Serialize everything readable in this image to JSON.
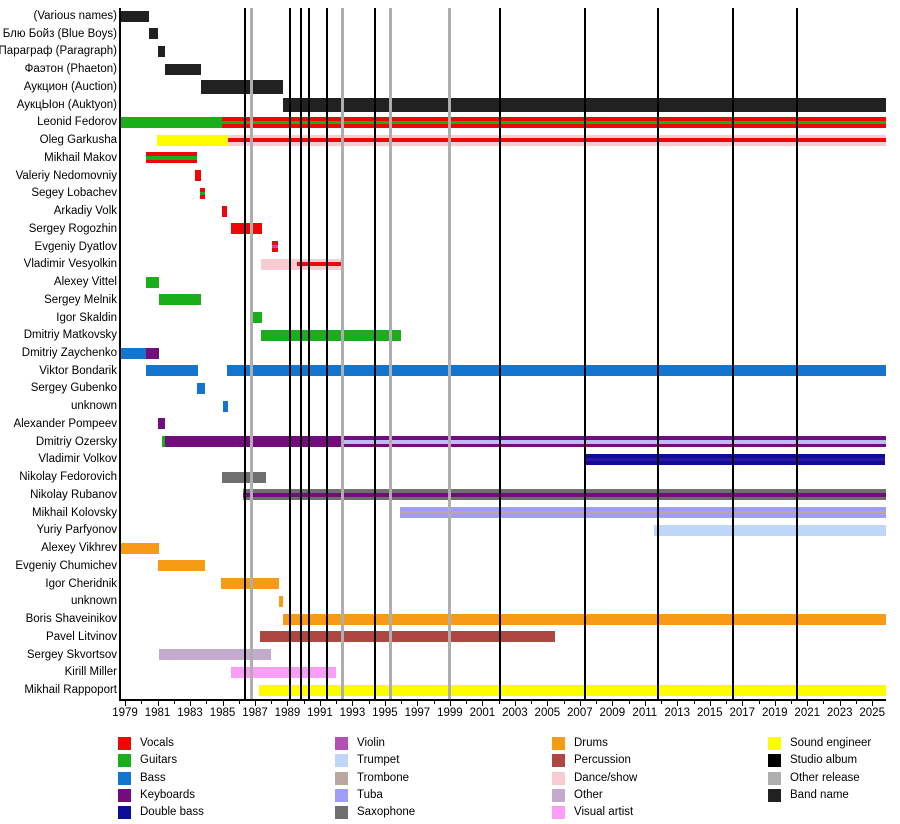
{
  "chart_data": {
    "type": "timeline",
    "title": "",
    "x_axis": {
      "min": 1978.75,
      "max": 2025.85,
      "minor_step": 1,
      "tick_labels": [
        1979,
        1981,
        1983,
        1985,
        1987,
        1989,
        1991,
        1993,
        1995,
        1997,
        1999,
        2001,
        2003,
        2005,
        2007,
        2009,
        2011,
        2013,
        2015,
        2017,
        2019,
        2021,
        2023,
        2025
      ]
    },
    "palette": {
      "vocals": "#ee0707",
      "guitars": "#1bad1b",
      "bass": "#1475cf",
      "keyboards": "#730d7d",
      "double_bass": "#0d0d99",
      "violin": "#b351b3",
      "trumpet": "#bed7f9",
      "trombone": "#b9a7a0",
      "tuba": "#9e9ef6",
      "saxophone": "#6f6f6f",
      "drums": "#f79a18",
      "percussion": "#ae4742",
      "dance_show": "#f9ccd3",
      "other": "#c2abcc",
      "visual_artist": "#fb9df6",
      "sound_engineer": "#fdfd00",
      "studio_album": "#000000",
      "other_release": "#aeaeae",
      "band_name": "#212121"
    },
    "release_lines": {
      "studio_albums": [
        1986.4,
        1989.15,
        1989.85,
        1990.35,
        1991.45,
        1994.4,
        2002.1,
        2007.3,
        2011.8,
        2016.4,
        2020.4
      ],
      "other_releases": [
        1986.8,
        1992.4,
        1995.35,
        1999.0
      ]
    },
    "rows": [
      {
        "label": "(Various names)",
        "band": true,
        "bars": [
          {
            "start": 1978.75,
            "end": 1980.5,
            "stripes": [
              "band_name"
            ]
          }
        ]
      },
      {
        "label": "Блю Бойз (Blue Boys)",
        "band": true,
        "bars": [
          {
            "start": 1980.45,
            "end": 1981.05,
            "stripes": [
              "band_name"
            ]
          }
        ]
      },
      {
        "label": "Параграф (Paragraph)",
        "band": true,
        "bars": [
          {
            "start": 1981.05,
            "end": 1981.45,
            "stripes": [
              "band_name"
            ]
          }
        ]
      },
      {
        "label": "Фаэтон (Phaeton)",
        "band": true,
        "bars": [
          {
            "start": 1981.45,
            "end": 1983.7,
            "stripes": [
              "band_name"
            ]
          }
        ]
      },
      {
        "label": "Аукцион (Auction)",
        "band": true,
        "tall": true,
        "bars": [
          {
            "start": 1983.7,
            "end": 1988.7,
            "stripes": [
              "band_name"
            ]
          }
        ]
      },
      {
        "label": "АукцЫон (Auktyon)",
        "band": true,
        "tall": true,
        "bars": [
          {
            "start": 1988.7,
            "end": 2025.85,
            "stripes": [
              "band_name"
            ]
          }
        ]
      },
      {
        "label": "Leonid Fedorov",
        "bars": [
          {
            "start": 1978.75,
            "end": 1984.95,
            "stripes": [
              "guitars"
            ]
          },
          {
            "start": 1984.95,
            "end": 2025.85,
            "stripes": [
              "vocals",
              "guitars",
              "vocals"
            ]
          }
        ]
      },
      {
        "label": "Oleg Garkusha",
        "bars": [
          {
            "start": 1980.95,
            "end": 1985.35,
            "stripes": [
              "sound_engineer"
            ]
          },
          {
            "start": 1985.35,
            "end": 2025.85,
            "stripes": [
              "dance_show",
              "vocals",
              "dance_show"
            ]
          }
        ]
      },
      {
        "label": "Mikhail Makov",
        "bars": [
          {
            "start": 1980.3,
            "end": 1983.4,
            "stripes": [
              "vocals",
              "guitars",
              "vocals"
            ]
          }
        ]
      },
      {
        "label": "Valeriy Nedomovniy",
        "bars": [
          {
            "start": 1983.3,
            "end": 1983.65,
            "stripes": [
              "vocals"
            ]
          }
        ]
      },
      {
        "label": "Segey Lobachev",
        "bars": [
          {
            "start": 1983.6,
            "end": 1983.95,
            "stripes": [
              "vocals",
              "guitars",
              "vocals"
            ]
          }
        ]
      },
      {
        "label": "Arkadiy Volk",
        "bars": [
          {
            "start": 1984.95,
            "end": 1985.3,
            "stripes": [
              "vocals"
            ]
          }
        ]
      },
      {
        "label": "Sergey Rogozhin",
        "bars": [
          {
            "start": 1985.5,
            "end": 1987.45,
            "stripes": [
              "vocals"
            ]
          }
        ]
      },
      {
        "label": "Evgeniy Dyatlov",
        "bars": [
          {
            "start": 1988.05,
            "end": 1988.4,
            "stripes": [
              "vocals",
              "violin",
              "vocals"
            ]
          }
        ]
      },
      {
        "label": "Vladimir Vesyolkin",
        "bars": [
          {
            "start": 1987.4,
            "end": 1989.6,
            "stripes": [
              "dance_show"
            ]
          },
          {
            "start": 1989.6,
            "end": 1992.4,
            "stripes": [
              "dance_show",
              "vocals",
              "dance_show"
            ]
          }
        ]
      },
      {
        "label": "Alexey Vittel",
        "bars": [
          {
            "start": 1980.3,
            "end": 1981.1,
            "stripes": [
              "guitars"
            ]
          }
        ]
      },
      {
        "label": "Sergey Melnik",
        "bars": [
          {
            "start": 1981.1,
            "end": 1983.7,
            "stripes": [
              "guitars"
            ]
          }
        ]
      },
      {
        "label": "Igor Skaldin",
        "bars": [
          {
            "start": 1986.8,
            "end": 1987.45,
            "stripes": [
              "guitars"
            ]
          }
        ]
      },
      {
        "label": "Dmitriy Matkovsky",
        "bars": [
          {
            "start": 1987.4,
            "end": 1996.0,
            "stripes": [
              "guitars"
            ]
          }
        ]
      },
      {
        "label": "Dmitriy Zaychenko",
        "bars": [
          {
            "start": 1978.75,
            "end": 1980.3,
            "stripes": [
              "bass"
            ]
          },
          {
            "start": 1980.3,
            "end": 1981.1,
            "stripes": [
              "keyboards"
            ]
          }
        ]
      },
      {
        "label": "Viktor Bondarik",
        "bars": [
          {
            "start": 1980.3,
            "end": 1983.5,
            "stripes": [
              "bass"
            ]
          },
          {
            "start": 1985.25,
            "end": 2025.85,
            "stripes": [
              "bass"
            ]
          }
        ]
      },
      {
        "label": "Sergey Gubenko",
        "bars": [
          {
            "start": 1983.4,
            "end": 1983.95,
            "stripes": [
              "bass"
            ]
          }
        ]
      },
      {
        "label": "unknown",
        "bars": [
          {
            "start": 1985.05,
            "end": 1985.35,
            "stripes": [
              "bass"
            ]
          }
        ]
      },
      {
        "label": "Alexander Pompeev",
        "bars": [
          {
            "start": 1981.0,
            "end": 1981.45,
            "stripes": [
              "keyboards"
            ]
          }
        ]
      },
      {
        "label": "Dmitriy Ozersky",
        "bars": [
          {
            "start": 1981.3,
            "end": 1981.45,
            "stripes": [
              "guitars"
            ]
          },
          {
            "start": 1981.45,
            "end": 1992.3,
            "stripes": [
              "keyboards"
            ]
          },
          {
            "start": 1992.3,
            "end": 2025.85,
            "stripes": [
              "keyboards",
              "#b6c0f4",
              "keyboards"
            ]
          }
        ]
      },
      {
        "label": "Vladimir Volkov",
        "bars": [
          {
            "start": 2007.35,
            "end": 2025.8,
            "stripes": [
              "double_bass",
              "#31149e",
              "double_bass"
            ]
          }
        ]
      },
      {
        "label": "Nikolay Fedorovich",
        "bars": [
          {
            "start": 1984.95,
            "end": 1987.65,
            "stripes": [
              "saxophone"
            ]
          }
        ]
      },
      {
        "label": "Nikolay Rubanov",
        "bars": [
          {
            "start": 1986.25,
            "end": 2025.85,
            "stripes": [
              "saxophone",
              "keyboards",
              "saxophone"
            ]
          }
        ]
      },
      {
        "label": "Mikhail Kolovsky",
        "bars": [
          {
            "start": 1995.9,
            "end": 2025.85,
            "stripes": [
              "tuba",
              "trombone",
              "tuba"
            ]
          }
        ]
      },
      {
        "label": "Yuriy Parfyonov",
        "bars": [
          {
            "start": 2011.55,
            "end": 2025.85,
            "stripes": [
              "trumpet"
            ]
          }
        ]
      },
      {
        "label": "Alexey Vikhrev",
        "bars": [
          {
            "start": 1978.75,
            "end": 1981.1,
            "stripes": [
              "drums"
            ]
          }
        ]
      },
      {
        "label": "Evgeniy Chumichev",
        "bars": [
          {
            "start": 1981.05,
            "end": 1983.9,
            "stripes": [
              "drums"
            ]
          }
        ]
      },
      {
        "label": "Igor Cheridnik",
        "bars": [
          {
            "start": 1984.9,
            "end": 1988.5,
            "stripes": [
              "drums"
            ]
          }
        ]
      },
      {
        "label": "unknown",
        "bars": [
          {
            "start": 1988.5,
            "end": 1988.7,
            "stripes": [
              "drums"
            ]
          }
        ]
      },
      {
        "label": "Boris Shaveinikov",
        "bars": [
          {
            "start": 1988.7,
            "end": 2025.85,
            "stripes": [
              "drums"
            ]
          }
        ]
      },
      {
        "label": "Pavel Litvinov",
        "bars": [
          {
            "start": 1987.3,
            "end": 2005.5,
            "stripes": [
              "percussion"
            ]
          }
        ]
      },
      {
        "label": "Sergey Skvortsov",
        "bars": [
          {
            "start": 1981.1,
            "end": 1988.0,
            "stripes": [
              "other"
            ]
          }
        ]
      },
      {
        "label": "Kirill Miller",
        "bars": [
          {
            "start": 1985.55,
            "end": 1992.0,
            "stripes": [
              "visual_artist"
            ]
          }
        ]
      },
      {
        "label": "Mikhail Rappoport",
        "bars": [
          {
            "start": 1987.25,
            "end": 2025.85,
            "stripes": [
              "sound_engineer"
            ]
          }
        ]
      }
    ],
    "legend": {
      "columns": [
        [
          {
            "label": "Vocals",
            "color": "vocals"
          },
          {
            "label": "Guitars",
            "color": "guitars"
          },
          {
            "label": "Bass",
            "color": "bass"
          },
          {
            "label": "Keyboards",
            "color": "keyboards"
          },
          {
            "label": "Double bass",
            "color": "double_bass"
          }
        ],
        [
          {
            "label": "Violin",
            "color": "violin"
          },
          {
            "label": "Trumpet",
            "color": "trumpet"
          },
          {
            "label": "Trombone",
            "color": "trombone"
          },
          {
            "label": "Tuba",
            "color": "tuba"
          },
          {
            "label": "Saxophone",
            "color": "saxophone"
          }
        ],
        [
          {
            "label": "Drums",
            "color": "drums"
          },
          {
            "label": "Percussion",
            "color": "percussion"
          },
          {
            "label": "Dance/show",
            "color": "dance_show"
          },
          {
            "label": "Other",
            "color": "other"
          },
          {
            "label": "Visual artist",
            "color": "visual_artist"
          }
        ],
        [
          {
            "label": "Sound engineer",
            "color": "sound_engineer"
          },
          {
            "label": "Studio album",
            "color": "studio_album"
          },
          {
            "label": "Other release",
            "color": "other_release"
          },
          {
            "label": "Band name",
            "color": "band_name"
          }
        ]
      ]
    }
  }
}
